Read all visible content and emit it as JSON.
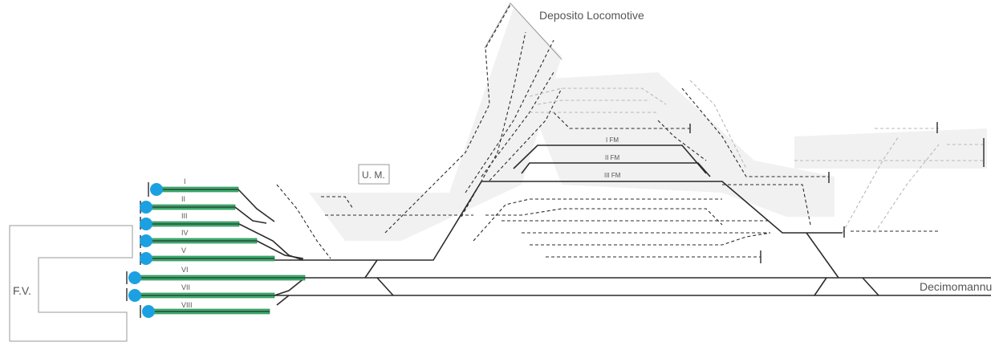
{
  "labels": {
    "station_building": "F.V.",
    "maintenance_unit": "U. M.",
    "loco_depot": "Deposito Locomotive",
    "destination": "Decimomannu"
  },
  "platform_tracks": [
    "I",
    "II",
    "III",
    "IV",
    "V",
    "VI",
    "VII",
    "VIII"
  ],
  "freight_tracks": [
    "I FM",
    "II FM",
    "III FM"
  ],
  "colors": {
    "track": "#2b2b2b",
    "faint_track": "#b9b9b9",
    "platform": "#3cb371",
    "signal": "#1ba1e2",
    "building_outline": "#9a9a9a"
  }
}
